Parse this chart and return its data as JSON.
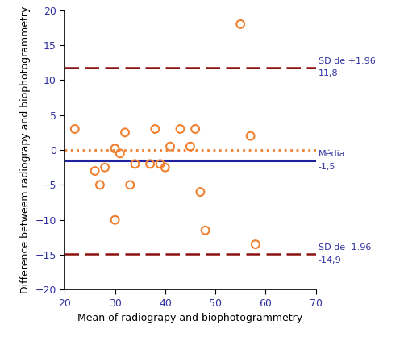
{
  "x_data": [
    22,
    26,
    27,
    28,
    30,
    30,
    31,
    32,
    33,
    34,
    37,
    38,
    39,
    40,
    41,
    43,
    45,
    46,
    47,
    48,
    55,
    57,
    58
  ],
  "y_data": [
    3,
    -3,
    -5,
    -2.5,
    -10,
    0.2,
    -0.5,
    2.5,
    -5,
    -2,
    -2,
    3,
    -2,
    -2.5,
    0.5,
    3,
    0.5,
    3,
    -6,
    -11.5,
    18,
    2,
    -13.5
  ],
  "mean_line": -1.5,
  "zero_line": 0,
  "upper_sd_line": 11.8,
  "lower_sd_line": -14.9,
  "upper_sd_label": "SD de +1.96",
  "upper_val_label": "11,8",
  "lower_sd_label": "SD de -1.96",
  "lower_val_label": "-14,9",
  "mean_label": "Média",
  "mean_val_label": "-1,5",
  "xlabel": "Mean of radiograpy and biophotogrammetry",
  "ylabel": "Difference betweem radiograpy and biophotogrammetry",
  "xlim": [
    20,
    70
  ],
  "ylim": [
    -20,
    20
  ],
  "xticks": [
    20,
    30,
    40,
    50,
    60,
    70
  ],
  "yticks": [
    -20,
    -15,
    -10,
    -5,
    0,
    5,
    10,
    15,
    20
  ],
  "scatter_facecolor": "none",
  "scatter_edge_color": "#f08030",
  "mean_line_color": "#2020a0",
  "zero_line_color": "#f08030",
  "sd_line_color": "#8b1010",
  "label_color_sd": "#3030a0",
  "label_color_val": "#3030a0",
  "tick_label_color": "#3030a0",
  "axis_label_color": "#000000",
  "background_color": "#ffffff",
  "figsize": [
    5.02,
    4.18
  ],
  "dpi": 100
}
